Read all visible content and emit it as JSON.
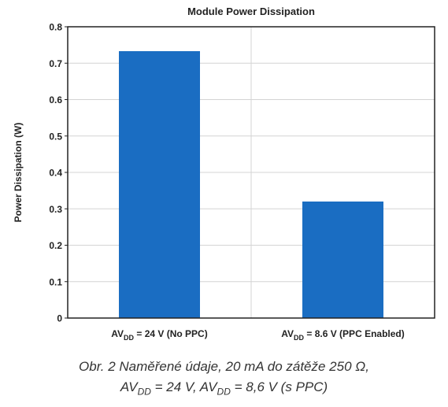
{
  "chart_data": {
    "type": "bar",
    "title": "Module Power Dissipation",
    "ylabel": "Power Dissipation (W)",
    "xlabel": "",
    "ylim": [
      0,
      0.8
    ],
    "yticks": [
      "0",
      "0.1",
      "0.2",
      "0.3",
      "0.4",
      "0.5",
      "0.6",
      "0.7",
      "0.8"
    ],
    "grid": true,
    "categories": [
      {
        "main": "AV",
        "sub": "DD",
        "rest": " = 24 V (No PPC)"
      },
      {
        "main": "AV",
        "sub": "DD",
        "rest": " = 8.6 V (PPC Enabled)"
      }
    ],
    "values": [
      0.733,
      0.32
    ],
    "bar_color": "#1a6dc2"
  },
  "caption": {
    "line1": "Obr. 2  Naměřené údaje, 20 mA do zátěže 250 Ω,",
    "line2_a": "AV",
    "line2_sub1": "DD",
    "line2_b": " = 24 V, AV",
    "line2_sub2": "DD",
    "line2_c": " = 8,6 V (s PPC)"
  }
}
